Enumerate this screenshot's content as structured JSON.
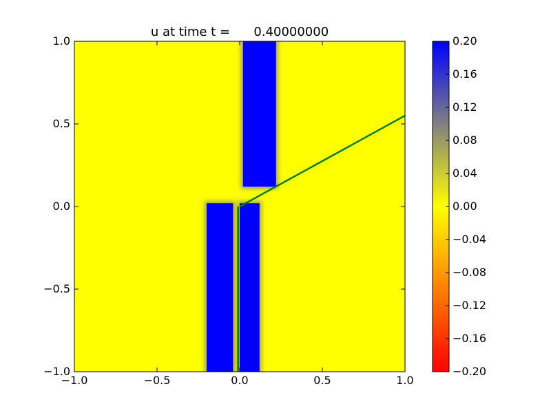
{
  "chart_data": {
    "type": "heatmap",
    "title": "u at time t =      0.40000000",
    "xlabel": "",
    "ylabel": "",
    "xlim": [
      -1.0,
      1.0
    ],
    "ylim": [
      -1.0,
      1.0
    ],
    "x_ticks": [
      "−1.0",
      "−0.5",
      "0.0",
      "0.5",
      "1.0"
    ],
    "y_ticks": [
      "−1.0",
      "−0.5",
      "0.0",
      "0.5",
      "1.0"
    ],
    "x_tick_values": [
      -1.0,
      -0.5,
      0.0,
      0.5,
      1.0
    ],
    "y_tick_values": [
      -1.0,
      -0.5,
      0.0,
      0.5,
      1.0
    ],
    "grid": false,
    "colorbar": {
      "range": [
        -0.2,
        0.2
      ],
      "ticks": [
        "−0.20",
        "−0.16",
        "−0.12",
        "−0.08",
        "−0.04",
        "0.00",
        "0.04",
        "0.08",
        "0.12",
        "0.16",
        "0.20"
      ],
      "tick_values": [
        -0.2,
        -0.16,
        -0.12,
        -0.08,
        -0.04,
        0.0,
        0.04,
        0.08,
        0.12,
        0.16,
        0.2
      ],
      "colormap": [
        {
          "value": -0.2,
          "color": "#ff0000"
        },
        {
          "value": 0.0,
          "color": "#ffff00"
        },
        {
          "value": 0.1,
          "color": "#808080"
        },
        {
          "value": 0.2,
          "color": "#0000ff"
        }
      ]
    },
    "field": {
      "background_value": 0.0,
      "regions": [
        {
          "name": "upper-band",
          "value": 0.2,
          "x": [
            0.02,
            0.22
          ],
          "y": [
            0.12,
            1.0
          ]
        },
        {
          "name": "right-leg",
          "value": 0.2,
          "x": [
            0.0,
            0.12
          ],
          "y": [
            -1.0,
            0.02
          ]
        },
        {
          "name": "left-leg",
          "value": 0.2,
          "x": [
            -0.2,
            -0.04
          ],
          "y": [
            -1.0,
            0.02
          ]
        }
      ]
    },
    "lines": [
      {
        "name": "ray-diagonal",
        "color": "#008000",
        "x": [
          0.0,
          1.0
        ],
        "y": [
          0.0,
          0.55
        ]
      },
      {
        "name": "ray-vertical",
        "color": "#008000",
        "x": [
          -0.01,
          -0.01
        ],
        "y": [
          0.0,
          -1.0
        ]
      }
    ]
  }
}
